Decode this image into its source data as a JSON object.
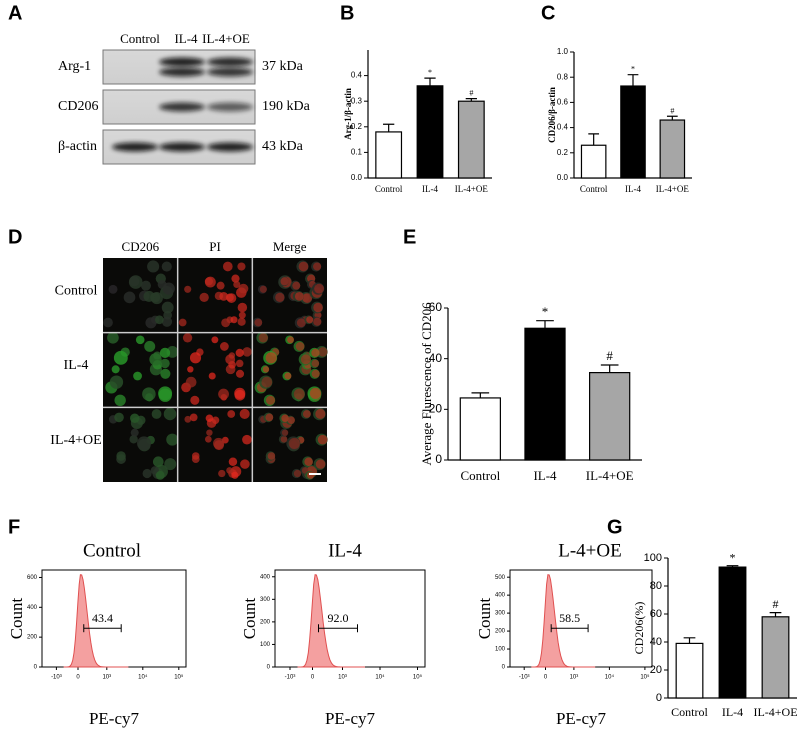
{
  "panel_labels": [
    "A",
    "B",
    "C",
    "D",
    "E",
    "F",
    "G"
  ],
  "blot": {
    "columns": [
      "Control",
      "IL-4",
      "IL-4+OE"
    ],
    "rows": [
      {
        "name": "Arg-1",
        "size": "37 kDa"
      },
      {
        "name": "CD206",
        "size": "190 kDa"
      },
      {
        "name": "β-actin",
        "size": "43 kDa"
      }
    ]
  },
  "micrograph": {
    "columns": [
      "CD206",
      "PI",
      "Merge"
    ],
    "rows": [
      "Control",
      "IL-4",
      "IL-4+OE"
    ]
  },
  "flow": {
    "ylabel": "Count",
    "xlabel": "PE-cy7",
    "xticks": [
      "-10³",
      "0",
      "10³",
      "10⁴",
      "10⁵"
    ],
    "panels": [
      {
        "title": "Control",
        "gate": 43.4,
        "ylim": [
          0,
          650
        ],
        "yticks": [
          0,
          200,
          400,
          600
        ]
      },
      {
        "title": "IL-4",
        "gate": 92.0,
        "gate_label": "92.0",
        "ylim": [
          0,
          430
        ],
        "yticks": [
          0,
          100,
          200,
          300,
          400
        ]
      },
      {
        "title": "L-4+OE",
        "gate": 58.5,
        "ylim": [
          0,
          540
        ],
        "yticks": [
          0,
          100,
          200,
          300,
          400,
          500
        ]
      }
    ]
  },
  "chart_data": [
    {
      "type": "bar",
      "ylabel": "Arg-1/β-actin",
      "categories": [
        "Control",
        "IL-4",
        "IL-4+OE"
      ],
      "values": [
        0.18,
        0.36,
        0.3
      ],
      "errors": [
        0.03,
        0.03,
        0.01
      ],
      "colors": [
        "#ffffff",
        "#000000",
        "#a6a6a6"
      ],
      "annotations": [
        null,
        "*",
        "#"
      ],
      "ylim": [
        0,
        0.5
      ],
      "yticks": [
        {
          "value": 0,
          "label": "0.0"
        },
        {
          "value": 0.1,
          "label": "0.1"
        },
        {
          "value": 0.2,
          "label": "0.2"
        },
        {
          "value": 0.3,
          "label": "0.3"
        },
        {
          "value": 0.4,
          "label": "0.4"
        }
      ]
    },
    {
      "type": "bar",
      "ylabel": "CD206/β-actin",
      "categories": [
        "Control",
        "IL-4",
        "IL-4+OE"
      ],
      "values": [
        0.26,
        0.73,
        0.46
      ],
      "errors": [
        0.09,
        0.09,
        0.03
      ],
      "colors": [
        "#ffffff",
        "#000000",
        "#a6a6a6"
      ],
      "annotations": [
        null,
        "*",
        "#"
      ],
      "ylim": [
        0,
        1.0
      ],
      "yticks": [
        {
          "value": 0,
          "label": "0.0"
        },
        {
          "value": 0.2,
          "label": "0.2"
        },
        {
          "value": 0.4,
          "label": "0.4"
        },
        {
          "value": 0.6,
          "label": "0.6"
        },
        {
          "value": 0.8,
          "label": "0.8"
        },
        {
          "value": 1.0,
          "label": "1.0"
        }
      ]
    },
    {
      "type": "bar",
      "ylabel": "Average Flurescence of CD206",
      "categories": [
        "Control",
        "IL-4",
        "IL-4+OE"
      ],
      "values": [
        24.5,
        52,
        34.5
      ],
      "errors": [
        2,
        3,
        3
      ],
      "colors": [
        "#ffffff",
        "#000000",
        "#a6a6a6"
      ],
      "annotations": [
        null,
        "*",
        "#"
      ],
      "ylim": [
        0,
        60
      ],
      "yticks": [
        0,
        20,
        40,
        60
      ]
    },
    {
      "type": "bar",
      "ylabel": "CD206(%)",
      "categories": [
        "Control",
        "IL-4",
        "IL-4+OE"
      ],
      "values": [
        39,
        93.5,
        58
      ],
      "errors": [
        4,
        1,
        3
      ],
      "colors": [
        "#ffffff",
        "#000000",
        "#a6a6a6"
      ],
      "annotations": [
        null,
        "*",
        "#"
      ],
      "ylim": [
        0,
        100
      ],
      "yticks": [
        0,
        20,
        40,
        60,
        80,
        100
      ]
    }
  ]
}
